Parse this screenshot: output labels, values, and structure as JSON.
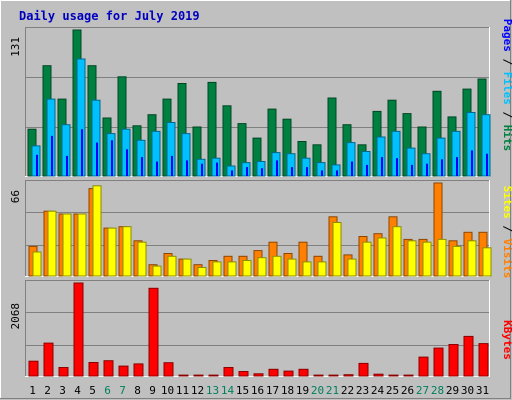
{
  "chart_data": [
    {
      "type": "bar",
      "title": "Daily usage for July 2019",
      "ylabel_parts": [
        "Pages",
        "Files",
        "Hits"
      ],
      "ymax_label": "131",
      "ylim": [
        0,
        131
      ],
      "grid": true,
      "categories": [
        "1",
        "2",
        "3",
        "4",
        "5",
        "6",
        "7",
        "8",
        "9",
        "10",
        "11",
        "12",
        "13",
        "14",
        "15",
        "16",
        "17",
        "18",
        "19",
        "20",
        "21",
        "22",
        "23",
        "24",
        "25",
        "26",
        "27",
        "28",
        "29",
        "30",
        "31"
      ],
      "weekend_days": [
        "6",
        "7",
        "13",
        "14",
        "20",
        "21",
        "27",
        "28"
      ],
      "series": [
        {
          "name": "Hits",
          "color": "#008040",
          "values": [
            42,
            99,
            69,
            131,
            99,
            52,
            89,
            45,
            55,
            69,
            83,
            44,
            84,
            63,
            47,
            34,
            60,
            51,
            31,
            28,
            70,
            46,
            28,
            58,
            68,
            56,
            44,
            76,
            53,
            78,
            87
          ]
        },
        {
          "name": "Files",
          "color": "#00c0ff",
          "values": [
            27,
            69,
            46,
            105,
            68,
            38,
            42,
            32,
            40,
            48,
            38,
            15,
            16,
            9,
            12,
            13,
            21,
            20,
            16,
            12,
            10,
            30,
            22,
            35,
            40,
            25,
            20,
            34,
            40,
            57,
            55
          ]
        },
        {
          "name": "Pages",
          "color": "#0000ff",
          "values": [
            19,
            36,
            18,
            42,
            30,
            32,
            24,
            17,
            13,
            18,
            14,
            11,
            12,
            5,
            8,
            7,
            14,
            8,
            8,
            5,
            5,
            13,
            10,
            17,
            16,
            10,
            11,
            15,
            17,
            23,
            20
          ]
        }
      ]
    },
    {
      "type": "bar",
      "ylabel_parts": [
        "Sites",
        "Visits"
      ],
      "ymax_label": "66",
      "ylim": [
        0,
        66
      ],
      "grid": true,
      "categories": [
        "1",
        "2",
        "3",
        "4",
        "5",
        "6",
        "7",
        "8",
        "9",
        "10",
        "11",
        "12",
        "13",
        "14",
        "15",
        "16",
        "17",
        "18",
        "19",
        "20",
        "21",
        "22",
        "23",
        "24",
        "25",
        "26",
        "27",
        "28",
        "29",
        "30",
        "31"
      ],
      "series": [
        {
          "name": "Visits",
          "color": "#ff8000",
          "values": [
            21,
            46,
            44,
            44,
            62,
            34,
            35,
            25,
            8,
            16,
            12,
            8,
            11,
            14,
            14,
            18,
            24,
            16,
            24,
            14,
            42,
            15,
            28,
            30,
            42,
            26,
            26,
            66,
            25,
            31,
            31
          ]
        },
        {
          "name": "Sites",
          "color": "#ffff00",
          "values": [
            17,
            46,
            44,
            44,
            64,
            34,
            35,
            24,
            7,
            14,
            12,
            6,
            10,
            10,
            11,
            13,
            14,
            12,
            10,
            10,
            38,
            12,
            24,
            27,
            35,
            25,
            24,
            26,
            21,
            25,
            20
          ]
        }
      ]
    },
    {
      "type": "bar",
      "ylabel_parts": [
        "KBytes"
      ],
      "ymax_label": "2068",
      "ylim": [
        0,
        2068
      ],
      "grid": true,
      "categories": [
        "1",
        "2",
        "3",
        "4",
        "5",
        "6",
        "7",
        "8",
        "9",
        "10",
        "11",
        "12",
        "13",
        "14",
        "15",
        "16",
        "17",
        "18",
        "19",
        "20",
        "21",
        "22",
        "23",
        "24",
        "25",
        "26",
        "27",
        "28",
        "29",
        "30",
        "31"
      ],
      "series": [
        {
          "name": "KBytes",
          "color": "#ff0000",
          "values": [
            330,
            732,
            190,
            2068,
            300,
            340,
            220,
            270,
            1950,
            295,
            20,
            20,
            20,
            190,
            100,
            50,
            150,
            110,
            150,
            20,
            20,
            30,
            280,
            40,
            20,
            20,
            420,
            620,
            700,
            880,
            720
          ]
        }
      ]
    }
  ]
}
